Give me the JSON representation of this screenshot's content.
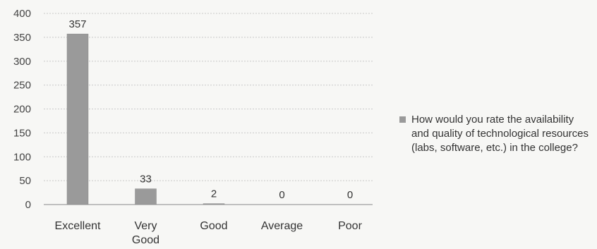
{
  "chart_data": {
    "type": "bar",
    "categories": [
      "Excellent",
      "Very Good",
      "Good",
      "Average",
      "Poor"
    ],
    "series": [
      {
        "name": "How would you rate the availability and quality of technological resources (labs, software, etc.) in the college?",
        "values": [
          357,
          33,
          2,
          0,
          0
        ],
        "color": "#9a9a9a"
      }
    ],
    "data_labels": [
      "357",
      "33",
      "2",
      "0",
      "0"
    ],
    "ylim": [
      0,
      400
    ],
    "yticks": [
      0,
      50,
      100,
      150,
      200,
      250,
      300,
      350,
      400
    ],
    "grid": true,
    "legend_position": "right",
    "title": "",
    "xlabel": "",
    "ylabel": ""
  }
}
